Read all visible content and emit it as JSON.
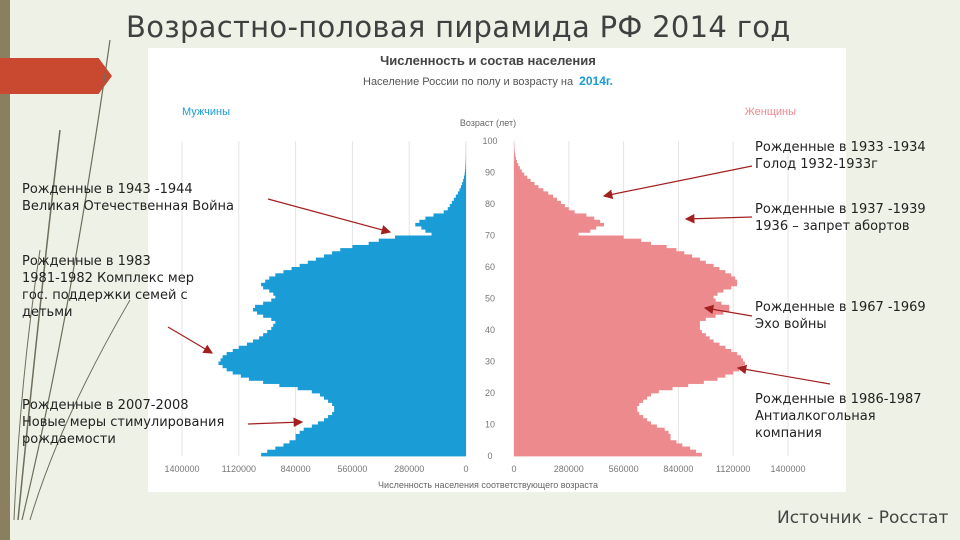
{
  "slide": {
    "title": "Возрастно-половая пирамида РФ 2014 год",
    "source": "Источник - Росстат"
  },
  "colors": {
    "male": "#1a9cd6",
    "female": "#ec8a8e",
    "accent": "#c8492f",
    "arrow": "#a32020"
  },
  "chart_data": {
    "type": "bar",
    "orientation": "horizontal-pyramid",
    "title": "Численность и состав населения",
    "subtitle_prefix": "Население России по полу и возрасту на",
    "subtitle_year": "2014г.",
    "ylabel": "Возраст (лет)",
    "xlabel": "Численность населения соответствующего возраста",
    "xlim": [
      0,
      1400000
    ],
    "ylim": [
      0,
      100
    ],
    "y_ticks": [
      "100",
      "90",
      "80",
      "70",
      "60",
      "50",
      "40",
      "30",
      "20",
      "10",
      "0"
    ],
    "x_ticks_left": [
      "1400000",
      "1120000",
      "840000",
      "560000",
      "280000",
      "0"
    ],
    "x_ticks_right": [
      "0",
      "280000",
      "560000",
      "840000",
      "1120000",
      "1400000"
    ],
    "series": [
      {
        "name": "Мужчины",
        "values": [
          1010000,
          980000,
          940000,
          900000,
          870000,
          840000,
          840000,
          820000,
          800000,
          760000,
          730000,
          700000,
          680000,
          660000,
          650000,
          650000,
          660000,
          680000,
          700000,
          720000,
          760000,
          830000,
          920000,
          1000000,
          1070000,
          1110000,
          1150000,
          1180000,
          1200000,
          1220000,
          1210000,
          1200000,
          1180000,
          1150000,
          1120000,
          1080000,
          1050000,
          1020000,
          1000000,
          980000,
          960000,
          950000,
          940000,
          960000,
          1000000,
          1030000,
          1050000,
          1040000,
          1000000,
          960000,
          940000,
          950000,
          970000,
          1000000,
          1010000,
          990000,
          970000,
          940000,
          900000,
          860000,
          820000,
          780000,
          740000,
          700000,
          660000,
          620000,
          560000,
          480000,
          430000,
          350000,
          170000,
          200000,
          220000,
          250000,
          230000,
          200000,
          160000,
          110000,
          90000,
          80000,
          70000,
          60000,
          50000,
          40000,
          32000,
          25000,
          19000,
          14000,
          10000,
          7000,
          5000,
          3500,
          2500,
          1800,
          1200,
          800,
          500,
          300,
          200,
          100,
          60
        ]
      },
      {
        "name": "Женщины",
        "values": [
          960000,
          930000,
          900000,
          860000,
          830000,
          800000,
          800000,
          790000,
          770000,
          730000,
          700000,
          680000,
          660000,
          640000,
          630000,
          630000,
          640000,
          660000,
          680000,
          700000,
          740000,
          810000,
          890000,
          970000,
          1040000,
          1080000,
          1120000,
          1150000,
          1170000,
          1180000,
          1170000,
          1160000,
          1140000,
          1110000,
          1080000,
          1050000,
          1020000,
          1000000,
          980000,
          960000,
          950000,
          950000,
          950000,
          980000,
          1030000,
          1070000,
          1100000,
          1100000,
          1060000,
          1030000,
          1020000,
          1040000,
          1070000,
          1110000,
          1140000,
          1140000,
          1130000,
          1110000,
          1080000,
          1050000,
          1020000,
          980000,
          950000,
          910000,
          870000,
          830000,
          780000,
          700000,
          650000,
          560000,
          330000,
          390000,
          420000,
          460000,
          440000,
          410000,
          370000,
          310000,
          280000,
          260000,
          240000,
          220000,
          200000,
          175000,
          150000,
          125000,
          105000,
          85000,
          68000,
          52000,
          40000,
          30000,
          22000,
          15000,
          10000,
          6500,
          4000,
          2500,
          1500,
          800,
          400
        ]
      }
    ],
    "series_labels": {
      "male": "Мужчины",
      "female": "Женщины"
    }
  },
  "annotations": [
    {
      "lines": [
        "Рожденные в 1943 -1944",
        "Великая Отечественная Война"
      ]
    },
    {
      "lines": [
        "Рожденные в 1983",
        "1981-1982 Комплекс мер",
        "гос. поддержки семей с",
        "детьми"
      ]
    },
    {
      "lines": [
        "Рожденные в 2007-2008",
        "Новые меры стимулирования",
        "рождаемости"
      ]
    },
    {
      "lines": [
        "Рожденные в 1933 -1934",
        "Голод 1932-1933г"
      ]
    },
    {
      "lines": [
        "Рожденные в 1937 -1939",
        "1936 – запрет абортов"
      ]
    },
    {
      "lines": [
        "Рожденные в 1967 -1969",
        "Эхо войны"
      ]
    },
    {
      "lines": [
        "Рожденные в 1986-1987",
        "Антиалкогольная",
        "компания"
      ]
    }
  ]
}
